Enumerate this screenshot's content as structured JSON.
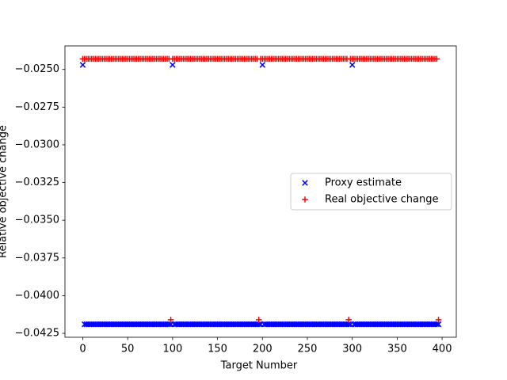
{
  "chart_data": {
    "type": "scatter",
    "xlabel": "Target Number",
    "ylabel": "Relative objective change",
    "xlim": [
      -19.8,
      415.8
    ],
    "ylim": [
      -0.04276,
      -0.02344
    ],
    "xticks": [
      0,
      50,
      100,
      150,
      200,
      250,
      300,
      350,
      400
    ],
    "yticks": [
      {
        "value": -0.025,
        "label": "−0.0250"
      },
      {
        "value": -0.0275,
        "label": "−0.0275"
      },
      {
        "value": -0.03,
        "label": "−0.0300"
      },
      {
        "value": -0.0325,
        "label": "−0.0325"
      },
      {
        "value": -0.035,
        "label": "−0.0350"
      },
      {
        "value": -0.0375,
        "label": "−0.0375"
      },
      {
        "value": -0.04,
        "label": "−0.0400"
      },
      {
        "value": -0.0425,
        "label": "−0.0425"
      }
    ],
    "legend": "center right",
    "x": [
      0,
      2,
      4,
      6,
      8,
      10,
      12,
      14,
      16,
      18,
      20,
      22,
      24,
      26,
      28,
      30,
      32,
      34,
      36,
      38,
      40,
      42,
      44,
      46,
      48,
      50,
      52,
      54,
      56,
      58,
      60,
      62,
      64,
      66,
      68,
      70,
      72,
      74,
      76,
      78,
      80,
      82,
      84,
      86,
      88,
      90,
      92,
      94,
      96,
      98,
      100,
      102,
      104,
      106,
      108,
      110,
      112,
      114,
      116,
      118,
      120,
      122,
      124,
      126,
      128,
      130,
      132,
      134,
      136,
      138,
      140,
      142,
      144,
      146,
      148,
      150,
      152,
      154,
      156,
      158,
      160,
      162,
      164,
      166,
      168,
      170,
      172,
      174,
      176,
      178,
      180,
      182,
      184,
      186,
      188,
      190,
      192,
      194,
      196,
      198,
      200,
      202,
      204,
      206,
      208,
      210,
      212,
      214,
      216,
      218,
      220,
      222,
      224,
      226,
      228,
      230,
      232,
      234,
      236,
      238,
      240,
      242,
      244,
      246,
      248,
      250,
      252,
      254,
      256,
      258,
      260,
      262,
      264,
      266,
      268,
      270,
      272,
      274,
      276,
      278,
      280,
      282,
      284,
      286,
      288,
      290,
      292,
      294,
      296,
      298,
      300,
      302,
      304,
      306,
      308,
      310,
      312,
      314,
      316,
      318,
      320,
      322,
      324,
      326,
      328,
      330,
      332,
      334,
      336,
      338,
      340,
      342,
      344,
      346,
      348,
      350,
      352,
      354,
      356,
      358,
      360,
      362,
      364,
      366,
      368,
      370,
      372,
      374,
      376,
      378,
      380,
      382,
      384,
      386,
      388,
      390,
      392,
      394,
      396
    ],
    "series": [
      {
        "name": "Proxy estimate",
        "color": "#0000ff",
        "marker": "x",
        "values": [
          -0.0247,
          -0.0419,
          -0.0419,
          -0.0419,
          -0.0419,
          -0.0419,
          -0.0419,
          -0.0419,
          -0.0419,
          -0.0419,
          -0.0419,
          -0.0419,
          -0.0419,
          -0.0419,
          -0.0419,
          -0.0419,
          -0.0419,
          -0.0419,
          -0.0419,
          -0.0419,
          -0.0419,
          -0.0419,
          -0.0419,
          -0.0419,
          -0.0419,
          -0.0419,
          -0.0419,
          -0.0419,
          -0.0419,
          -0.0419,
          -0.0419,
          -0.0419,
          -0.0419,
          -0.0419,
          -0.0419,
          -0.0419,
          -0.0419,
          -0.0419,
          -0.0419,
          -0.0419,
          -0.0419,
          -0.0419,
          -0.0419,
          -0.0419,
          -0.0419,
          -0.0419,
          -0.0419,
          -0.0419,
          -0.0419,
          -0.0419,
          -0.0247,
          -0.0419,
          -0.0419,
          -0.0419,
          -0.0419,
          -0.0419,
          -0.0419,
          -0.0419,
          -0.0419,
          -0.0419,
          -0.0419,
          -0.0419,
          -0.0419,
          -0.0419,
          -0.0419,
          -0.0419,
          -0.0419,
          -0.0419,
          -0.0419,
          -0.0419,
          -0.0419,
          -0.0419,
          -0.0419,
          -0.0419,
          -0.0419,
          -0.0419,
          -0.0419,
          -0.0419,
          -0.0419,
          -0.0419,
          -0.0419,
          -0.0419,
          -0.0419,
          -0.0419,
          -0.0419,
          -0.0419,
          -0.0419,
          -0.0419,
          -0.0419,
          -0.0419,
          -0.0419,
          -0.0419,
          -0.0419,
          -0.0419,
          -0.0419,
          -0.0419,
          -0.0419,
          -0.0419,
          -0.0419,
          -0.0419,
          -0.0247,
          -0.0419,
          -0.0419,
          -0.0419,
          -0.0419,
          -0.0419,
          -0.0419,
          -0.0419,
          -0.0419,
          -0.0419,
          -0.0419,
          -0.0419,
          -0.0419,
          -0.0419,
          -0.0419,
          -0.0419,
          -0.0419,
          -0.0419,
          -0.0419,
          -0.0419,
          -0.0419,
          -0.0419,
          -0.0419,
          -0.0419,
          -0.0419,
          -0.0419,
          -0.0419,
          -0.0419,
          -0.0419,
          -0.0419,
          -0.0419,
          -0.0419,
          -0.0419,
          -0.0419,
          -0.0419,
          -0.0419,
          -0.0419,
          -0.0419,
          -0.0419,
          -0.0419,
          -0.0419,
          -0.0419,
          -0.0419,
          -0.0419,
          -0.0419,
          -0.0419,
          -0.0419,
          -0.0419,
          -0.0419,
          -0.0419,
          -0.0247,
          -0.0419,
          -0.0419,
          -0.0419,
          -0.0419,
          -0.0419,
          -0.0419,
          -0.0419,
          -0.0419,
          -0.0419,
          -0.0419,
          -0.0419,
          -0.0419,
          -0.0419,
          -0.0419,
          -0.0419,
          -0.0419,
          -0.0419,
          -0.0419,
          -0.0419,
          -0.0419,
          -0.0419,
          -0.0419,
          -0.0419,
          -0.0419,
          -0.0419,
          -0.0419,
          -0.0419,
          -0.0419,
          -0.0419,
          -0.0419,
          -0.0419,
          -0.0419,
          -0.0419,
          -0.0419,
          -0.0419,
          -0.0419,
          -0.0419,
          -0.0419,
          -0.0419,
          -0.0419,
          -0.0419,
          -0.0419,
          -0.0419,
          -0.0419,
          -0.0419,
          -0.0419,
          -0.0419,
          -0.0419
        ]
      },
      {
        "name": "Real objective change",
        "color": "#ff0000",
        "marker": "+",
        "values": [
          -0.0243,
          -0.0243,
          -0.0243,
          -0.0243,
          -0.0243,
          -0.0243,
          -0.0243,
          -0.0243,
          -0.0243,
          -0.0243,
          -0.0243,
          -0.0243,
          -0.0243,
          -0.0243,
          -0.0243,
          -0.0243,
          -0.0243,
          -0.0243,
          -0.0243,
          -0.0243,
          -0.0243,
          -0.0243,
          -0.0243,
          -0.0243,
          -0.0243,
          -0.0243,
          -0.0243,
          -0.0243,
          -0.0243,
          -0.0243,
          -0.0243,
          -0.0243,
          -0.0243,
          -0.0243,
          -0.0243,
          -0.0243,
          -0.0243,
          -0.0243,
          -0.0243,
          -0.0243,
          -0.0243,
          -0.0243,
          -0.0243,
          -0.0243,
          -0.0243,
          -0.0243,
          -0.0243,
          -0.0243,
          -0.0243,
          -0.0416,
          -0.0243,
          -0.0243,
          -0.0243,
          -0.0243,
          -0.0243,
          -0.0243,
          -0.0243,
          -0.0243,
          -0.0243,
          -0.0243,
          -0.0243,
          -0.0243,
          -0.0243,
          -0.0243,
          -0.0243,
          -0.0243,
          -0.0243,
          -0.0243,
          -0.0243,
          -0.0243,
          -0.0243,
          -0.0243,
          -0.0243,
          -0.0243,
          -0.0243,
          -0.0243,
          -0.0243,
          -0.0243,
          -0.0243,
          -0.0243,
          -0.0243,
          -0.0243,
          -0.0243,
          -0.0243,
          -0.0243,
          -0.0243,
          -0.0243,
          -0.0243,
          -0.0243,
          -0.0243,
          -0.0243,
          -0.0243,
          -0.0243,
          -0.0243,
          -0.0243,
          -0.0243,
          -0.0243,
          -0.0243,
          -0.0416,
          -0.0243,
          -0.0243,
          -0.0243,
          -0.0243,
          -0.0243,
          -0.0243,
          -0.0243,
          -0.0243,
          -0.0243,
          -0.0243,
          -0.0243,
          -0.0243,
          -0.0243,
          -0.0243,
          -0.0243,
          -0.0243,
          -0.0243,
          -0.0243,
          -0.0243,
          -0.0243,
          -0.0243,
          -0.0243,
          -0.0243,
          -0.0243,
          -0.0243,
          -0.0243,
          -0.0243,
          -0.0243,
          -0.0243,
          -0.0243,
          -0.0243,
          -0.0243,
          -0.0243,
          -0.0243,
          -0.0243,
          -0.0243,
          -0.0243,
          -0.0243,
          -0.0243,
          -0.0243,
          -0.0243,
          -0.0243,
          -0.0243,
          -0.0243,
          -0.0243,
          -0.0243,
          -0.0243,
          -0.0243,
          -0.0243,
          -0.0416,
          -0.0243,
          -0.0243,
          -0.0243,
          -0.0243,
          -0.0243,
          -0.0243,
          -0.0243,
          -0.0243,
          -0.0243,
          -0.0243,
          -0.0243,
          -0.0243,
          -0.0243,
          -0.0243,
          -0.0243,
          -0.0243,
          -0.0243,
          -0.0243,
          -0.0243,
          -0.0243,
          -0.0243,
          -0.0243,
          -0.0243,
          -0.0243,
          -0.0243,
          -0.0243,
          -0.0243,
          -0.0243,
          -0.0243,
          -0.0243,
          -0.0243,
          -0.0243,
          -0.0243,
          -0.0243,
          -0.0243,
          -0.0243,
          -0.0243,
          -0.0243,
          -0.0243,
          -0.0243,
          -0.0243,
          -0.0243,
          -0.0243,
          -0.0243,
          -0.0243,
          -0.0243,
          -0.0243,
          -0.0243,
          -0.0243,
          -0.0416
        ]
      }
    ]
  }
}
